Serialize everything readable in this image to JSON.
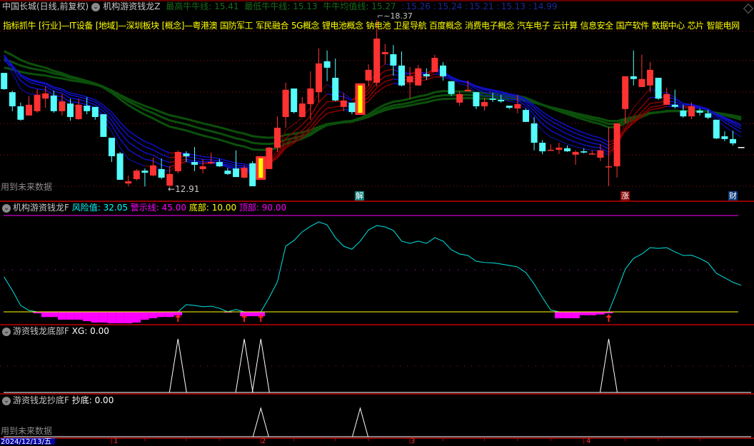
{
  "header": {
    "stock": "中国长城(日线,前复权)",
    "indicator": "机构游资钱龙Z",
    "legend": [
      {
        "label": "最高牛牛线",
        "value": "15.41"
      },
      {
        "label": "最低牛牛线",
        "value": "15.13"
      },
      {
        "label": "牛牛均值线",
        "value": "15.27"
      }
    ],
    "extra_values": [
      "15.26",
      "15.24",
      "15.21",
      "15.13",
      "14.99"
    ]
  },
  "concepts": [
    "指标抓牛",
    "[行业]—IT设备",
    "[地域]—深圳板块",
    "[概念]—粤港澳",
    "国防军工",
    "军民融合",
    "5G概念",
    "锂电池概念",
    "钠电池",
    "卫星导航",
    "百度概念",
    "消费电子概念",
    "汽车电子",
    "云计算",
    "信息安全",
    "国产软件",
    "数据中心",
    "芯片",
    "智能电网"
  ],
  "main": {
    "future_data_note": "用到未来数据",
    "high_marker": "18.37",
    "low_marker": "12.91",
    "badges": [
      {
        "text": "解",
        "color": "#0e7f7a"
      },
      {
        "text": "涨",
        "color": "#8b0a0a"
      },
      {
        "text": "财",
        "color": "#0a3a7a"
      }
    ]
  },
  "panel1": {
    "title": "机构游资钱龙F",
    "risk_label": "风险值",
    "risk_value": "32.05",
    "warn_label": "警示线",
    "warn_value": "45.00",
    "bottom_label": "底部",
    "bottom_value": "10.00",
    "top_label": "顶部",
    "top_value": "90.00"
  },
  "panel2": {
    "title": "游资钱龙底部F",
    "xg_label": "XG",
    "xg_value": "0.00"
  },
  "panel3": {
    "title": "游资钱龙抄底F",
    "label": "抄底",
    "value": "0.00",
    "note": "用到未来数据"
  },
  "axis": {
    "current_date": "2024/12/13/五",
    "month_labels": [
      "1",
      "2",
      "3",
      "4"
    ]
  },
  "colors": {
    "up": "#ff3232",
    "down": "#54fcfc",
    "signal": "#ffff00",
    "magenta": "#ff00ff",
    "green_ribbon": "#0b4f0b",
    "blue_ribbon": "#1010c8",
    "red_ribbon": "#8b0000",
    "grid": "#a01010"
  },
  "chart_data": {
    "type": "candlestick",
    "price_range": [
      12.45,
      19.02
    ],
    "ohlc": [
      [
        16.64,
        16.64,
        16.09,
        16.11
      ],
      [
        16.01,
        16.06,
        15.39,
        15.55
      ],
      [
        15.55,
        15.67,
        15.08,
        15.11
      ],
      [
        15.25,
        15.88,
        15.25,
        15.6
      ],
      [
        15.39,
        16.11,
        15.34,
        15.92
      ],
      [
        15.8,
        16.2,
        15.5,
        15.97
      ],
      [
        15.9,
        16.06,
        15.34,
        15.39
      ],
      [
        15.39,
        15.95,
        15.25,
        15.71
      ],
      [
        15.64,
        15.8,
        15.08,
        15.2
      ],
      [
        15.13,
        15.8,
        15.11,
        15.6
      ],
      [
        15.57,
        15.85,
        15.29,
        15.39
      ],
      [
        15.53,
        15.53,
        15.11,
        15.2
      ],
      [
        15.29,
        15.29,
        14.55,
        14.55
      ],
      [
        14.52,
        14.52,
        13.73,
        13.92
      ],
      [
        14.01,
        14.06,
        13.15,
        13.15
      ],
      [
        13.03,
        13.29,
        12.94,
        13.1
      ],
      [
        13.17,
        13.5,
        13.13,
        13.45
      ],
      [
        13.45,
        13.52,
        12.93,
        13.38
      ],
      [
        13.29,
        13.87,
        13.27,
        13.62
      ],
      [
        13.5,
        13.85,
        13.17,
        13.22
      ],
      [
        12.96,
        13.59,
        12.91,
        13.34
      ],
      [
        13.43,
        14.11,
        13.36,
        14.06
      ],
      [
        14.01,
        14.08,
        13.73,
        13.92
      ],
      [
        13.73,
        14.22,
        13.43,
        13.64
      ],
      [
        13.5,
        13.83,
        13.36,
        13.59
      ],
      [
        13.69,
        14.04,
        13.66,
        13.73
      ],
      [
        13.73,
        13.83,
        13.57,
        13.59
      ],
      [
        13.45,
        13.54,
        13.31,
        13.34
      ],
      [
        13.52,
        14.11,
        13.24,
        13.24
      ],
      [
        13.22,
        13.62,
        13.2,
        13.54
      ],
      [
        13.69,
        13.76,
        12.94,
        12.94
      ],
      [
        13.15,
        13.92,
        13.15,
        13.92
      ],
      [
        13.5,
        14.22,
        13.5,
        14.2
      ],
      [
        14.2,
        15.22,
        14.06,
        14.85
      ],
      [
        15.2,
        16.32,
        14.85,
        16.09
      ],
      [
        16.13,
        16.13,
        15.32,
        15.36
      ],
      [
        15.2,
        15.85,
        15.2,
        15.64
      ],
      [
        15.62,
        16.69,
        15.11,
        16.13
      ],
      [
        16.01,
        17.44,
        15.69,
        16.95
      ],
      [
        17.02,
        17.37,
        16.37,
        16.81
      ],
      [
        16.48,
        17.11,
        15.71,
        15.74
      ],
      [
        15.53,
        15.97,
        15.39,
        15.74
      ],
      [
        15.67,
        15.67,
        15.29,
        15.36
      ],
      [
        15.27,
        16.3,
        15.27,
        16.3
      ],
      [
        16.39,
        16.92,
        16.2,
        16.74
      ],
      [
        16.32,
        18.37,
        16.2,
        17.76
      ],
      [
        17.25,
        17.58,
        16.92,
        17.32
      ],
      [
        17.25,
        17.55,
        16.55,
        16.88
      ],
      [
        16.88,
        17.34,
        16.2,
        16.23
      ],
      [
        16.34,
        16.83,
        15.8,
        16.53
      ],
      [
        16.23,
        16.9,
        16.23,
        16.79
      ],
      [
        16.6,
        16.79,
        16.41,
        16.53
      ],
      [
        16.67,
        17.23,
        16.67,
        17.13
      ],
      [
        16.88,
        16.99,
        16.39,
        16.53
      ],
      [
        16.37,
        16.37,
        15.88,
        15.95
      ],
      [
        15.67,
        16.04,
        15.57,
        15.95
      ],
      [
        16.04,
        16.39,
        16.04,
        16.09
      ],
      [
        16.01,
        16.01,
        15.46,
        15.55
      ],
      [
        15.55,
        15.83,
        15.41,
        15.69
      ],
      [
        15.8,
        15.99,
        15.69,
        15.76
      ],
      [
        15.76,
        15.92,
        15.67,
        15.71
      ],
      [
        15.57,
        15.57,
        15.46,
        15.5
      ],
      [
        15.48,
        15.92,
        15.32,
        15.62
      ],
      [
        15.43,
        15.48,
        15.04,
        15.04
      ],
      [
        14.99,
        15.2,
        14.11,
        14.36
      ],
      [
        14.36,
        14.45,
        13.99,
        14.08
      ],
      [
        14.11,
        14.31,
        14.11,
        14.13
      ],
      [
        14.13,
        14.36,
        13.99,
        14.2
      ],
      [
        14.18,
        14.27,
        14.06,
        14.08
      ],
      [
        13.97,
        14.11,
        13.64,
        14.06
      ],
      [
        14.08,
        14.18,
        14.01,
        14.04
      ],
      [
        13.99,
        14.11,
        13.97,
        14.01
      ],
      [
        13.87,
        14.31,
        13.76,
        14.11
      ],
      [
        13.57,
        14.87,
        12.94,
        13.59
      ],
      [
        13.59,
        14.99,
        13.22,
        14.99
      ],
      [
        15.46,
        16.53,
        15.01,
        16.53
      ],
      [
        16.53,
        17.37,
        16.23,
        16.44
      ],
      [
        16.18,
        17.23,
        16.18,
        16.44
      ],
      [
        16.23,
        16.99,
        16.01,
        16.74
      ],
      [
        16.48,
        16.48,
        15.76,
        15.8
      ],
      [
        15.6,
        16.16,
        15.6,
        15.95
      ],
      [
        15.6,
        16.09,
        15.48,
        15.53
      ],
      [
        15.41,
        15.6,
        15.18,
        15.22
      ],
      [
        15.22,
        15.67,
        15.13,
        15.55
      ],
      [
        15.41,
        15.48,
        15.25,
        15.34
      ],
      [
        15.32,
        15.43,
        15.13,
        15.18
      ],
      [
        15.11,
        15.11,
        14.48,
        14.5
      ],
      [
        14.57,
        14.73,
        14.41,
        14.48
      ],
      [
        14.48,
        14.75,
        14.27,
        14.34
      ],
      [
        14.22,
        14.22,
        14.22,
        14.22
      ]
    ],
    "signal_bars": [
      31,
      43
    ],
    "risk": [
      39,
      27.8,
      15.3,
      11.2,
      8.8,
      5.7,
      5.7,
      3.5,
      3.5,
      3.5,
      2.3,
      1.1,
      1.1,
      0.5,
      0.5,
      0.5,
      1.1,
      3.5,
      4.7,
      5.7,
      5.7,
      7.0,
      16.0,
      15.3,
      14.2,
      14.7,
      13.0,
      9.4,
      12.0,
      6.4,
      6.4,
      6.4,
      21.8,
      34.9,
      64.5,
      69.3,
      76.4,
      81.0,
      84.7,
      82.3,
      71.6,
      64.5,
      62.0,
      68.7,
      78.0,
      81.7,
      80.5,
      77.6,
      68.7,
      66.9,
      68.7,
      66.9,
      71.6,
      68.7,
      61.6,
      58.0,
      56.8,
      52.0,
      51.0,
      50.7,
      49.7,
      48.5,
      47.3,
      42.6,
      33.1,
      21.9,
      11.5,
      4.7,
      4.7,
      4.7,
      7.2,
      7.2,
      7.8,
      8.8,
      27.2,
      45.5,
      54.4,
      58.0,
      63.3,
      62.7,
      63.3,
      59.8,
      56.8,
      57.0,
      54.4,
      50.7,
      42.0,
      38.3,
      34.5,
      32.05
    ],
    "risk_levels": {
      "warning": 45,
      "bottom": 10,
      "top": 90
    },
    "xg": [
      0,
      0,
      0,
      0,
      0,
      0,
      0,
      0,
      0,
      0,
      0,
      0,
      0,
      0,
      0,
      0,
      0,
      0,
      0,
      0,
      0,
      1,
      0,
      0,
      0,
      0,
      0,
      0,
      0,
      1,
      0,
      1,
      0,
      0,
      0,
      0,
      0,
      0,
      0,
      0,
      0,
      0,
      0,
      0,
      0,
      0,
      0,
      0,
      0,
      0,
      0,
      0,
      0,
      0,
      0,
      0,
      0,
      0,
      0,
      0,
      0,
      0,
      0,
      0,
      0,
      0,
      0,
      0,
      0,
      0,
      0,
      0,
      0,
      1,
      0,
      0,
      0,
      0,
      0,
      0,
      0,
      0,
      0,
      0,
      0,
      0,
      0,
      0,
      0,
      0
    ],
    "chaodi": [
      0,
      0,
      0,
      0,
      0,
      0,
      0,
      0,
      0,
      0,
      0,
      0,
      0,
      0,
      0,
      0,
      0,
      0,
      0,
      0,
      0,
      0,
      0,
      0,
      0,
      0,
      0,
      0,
      0,
      0,
      0,
      1,
      0,
      0,
      0,
      0,
      0,
      0,
      0,
      0,
      0,
      0,
      0,
      1,
      0,
      0,
      0,
      0,
      0,
      0,
      0,
      0,
      0,
      0,
      0,
      0,
      0,
      0,
      0,
      0,
      0,
      0,
      0,
      0,
      0,
      0,
      0,
      0,
      0,
      0,
      0,
      0,
      0,
      0,
      0,
      0,
      0,
      0,
      0,
      0,
      0,
      0,
      0,
      0,
      0,
      0,
      0,
      0,
      0,
      0
    ]
  }
}
